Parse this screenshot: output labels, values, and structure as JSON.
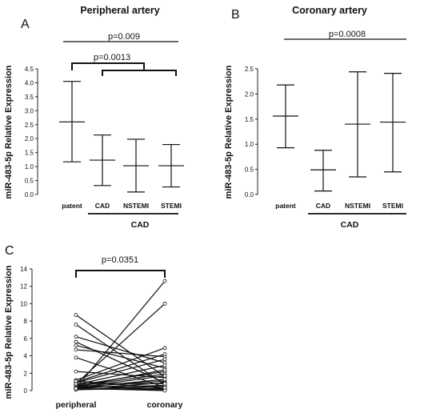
{
  "chart_data": [
    {
      "panel": "A",
      "type": "scatter",
      "title": "Peripheral artery",
      "ylabel": "miR-483-5p Relative Expression",
      "ylim": [
        0,
        4.5
      ],
      "yticks": [
        "0.0",
        "0.5",
        "1.0",
        "1.5",
        "2.0",
        "2.5",
        "3.0",
        "3.5",
        "4.0",
        "4.5"
      ],
      "categories": [
        "patent",
        "CAD",
        "NSTEMI",
        "STEMI"
      ],
      "group_label": "CAD",
      "series": [
        {
          "mean": [
            2.6,
            1.23,
            1.03,
            1.03
          ],
          "low": [
            1.17,
            0.32,
            0.09,
            0.27
          ],
          "high": [
            4.05,
            2.13,
            1.98,
            1.79
          ]
        }
      ],
      "annotations": [
        "p=0.009",
        "p=0.0013"
      ]
    },
    {
      "panel": "B",
      "type": "scatter",
      "title": "Coronary artery",
      "ylabel": "miR-483-5p Relative Expression",
      "ylim": [
        0,
        2.5
      ],
      "yticks": [
        "0.0",
        "0.5",
        "1.0",
        "1.5",
        "2.0",
        "2.5"
      ],
      "categories": [
        "patent",
        "CAD",
        "NSTEMI",
        "STEMI"
      ],
      "group_label": "CAD",
      "series": [
        {
          "mean": [
            1.56,
            0.49,
            1.4,
            1.44
          ],
          "low": [
            0.93,
            0.07,
            0.35,
            0.45
          ],
          "high": [
            2.18,
            0.88,
            2.44,
            2.41
          ]
        }
      ],
      "annotations": [
        "p=0.0008"
      ]
    },
    {
      "panel": "C",
      "type": "line",
      "ylabel": "miR-483-5p Relative Expression",
      "ylim": [
        0,
        14
      ],
      "yticks": [
        "0",
        "2",
        "4",
        "6",
        "8",
        "10",
        "12",
        "14"
      ],
      "categories": [
        "peripheral",
        "coronary"
      ],
      "annotations": [
        "p=0.0351"
      ],
      "pairs": [
        [
          0.3,
          12.6
        ],
        [
          0.8,
          10.0
        ],
        [
          8.7,
          1.6
        ],
        [
          7.6,
          0.7
        ],
        [
          6.2,
          3.2
        ],
        [
          5.6,
          0.9
        ],
        [
          5.2,
          2.6
        ],
        [
          4.7,
          3.9
        ],
        [
          3.8,
          0.4
        ],
        [
          2.2,
          1.5
        ],
        [
          1.2,
          4.9
        ],
        [
          1.0,
          4.2
        ],
        [
          0.9,
          3.6
        ],
        [
          0.7,
          2.9
        ],
        [
          0.6,
          2.2
        ],
        [
          0.5,
          1.9
        ],
        [
          0.5,
          0.2
        ],
        [
          0.4,
          2.4
        ],
        [
          0.4,
          1.1
        ],
        [
          0.3,
          0.6
        ],
        [
          0.3,
          1.3
        ],
        [
          0.2,
          0.9
        ],
        [
          0.2,
          0.1
        ],
        [
          0.1,
          0.5
        ],
        [
          0.1,
          0.3
        ],
        [
          0.6,
          0.1
        ],
        [
          0.8,
          0.8
        ],
        [
          1.1,
          0.3
        ],
        [
          0.35,
          1.7
        ],
        [
          0.25,
          0.0
        ]
      ]
    }
  ],
  "panels": {
    "a": {
      "letter": "A",
      "group": "CAD"
    },
    "b": {
      "letter": "B",
      "group": "CAD"
    },
    "c": {
      "letter": "C"
    }
  }
}
